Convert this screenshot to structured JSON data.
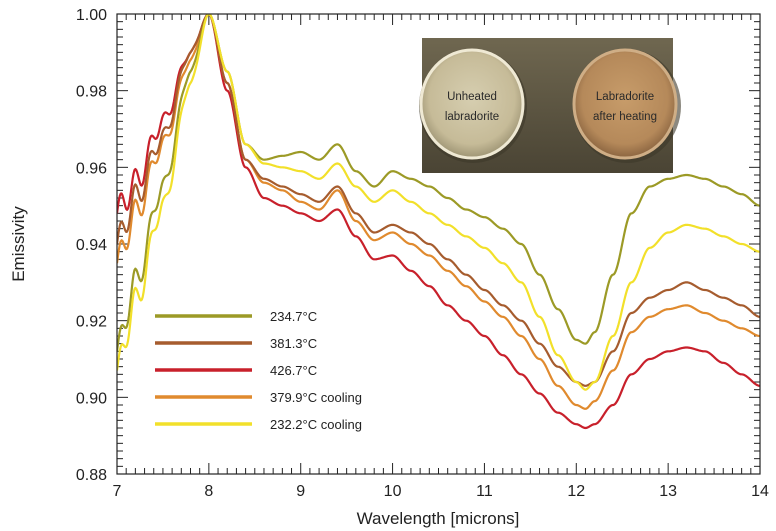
{
  "chart_data": {
    "type": "line",
    "title": "",
    "xlabel": "Wavelength [microns]",
    "ylabel": "Emissivity",
    "xlim": [
      7,
      14
    ],
    "ylim": [
      0.88,
      1.0
    ],
    "xticks": [
      "7",
      "8",
      "9",
      "10",
      "11",
      "12",
      "13",
      "14"
    ],
    "yticks": [
      "0.88",
      "0.90",
      "0.92",
      "0.94",
      "0.96",
      "0.98",
      "1.00"
    ],
    "grid": false,
    "legend_position": "bottom-left",
    "series": [
      {
        "name": "234.7°C",
        "color": "#9c9a26",
        "x": [
          7.0,
          7.2,
          7.5,
          7.8,
          8.0,
          8.2,
          8.4,
          8.6,
          8.8,
          9.0,
          9.2,
          9.4,
          9.6,
          9.8,
          10.0,
          10.2,
          10.4,
          10.6,
          10.8,
          11.0,
          11.2,
          11.4,
          11.6,
          11.8,
          12.0,
          12.1,
          12.2,
          12.4,
          12.6,
          12.8,
          13.0,
          13.2,
          13.4,
          13.6,
          13.8,
          14.0
        ],
        "y": [
          0.912,
          0.93,
          0.955,
          0.985,
          1.0,
          0.985,
          0.966,
          0.962,
          0.963,
          0.964,
          0.962,
          0.966,
          0.959,
          0.955,
          0.959,
          0.957,
          0.955,
          0.952,
          0.949,
          0.947,
          0.944,
          0.94,
          0.932,
          0.923,
          0.915,
          0.914,
          0.917,
          0.932,
          0.948,
          0.955,
          0.957,
          0.958,
          0.957,
          0.955,
          0.953,
          0.95
        ]
      },
      {
        "name": "381.3°C",
        "color": "#a65c2e",
        "x": [
          7.0,
          7.2,
          7.5,
          7.8,
          8.0,
          8.2,
          8.4,
          8.6,
          8.8,
          9.0,
          9.2,
          9.4,
          9.6,
          9.8,
          10.0,
          10.2,
          10.4,
          10.6,
          10.8,
          11.0,
          11.2,
          11.4,
          11.6,
          11.8,
          12.0,
          12.1,
          12.2,
          12.4,
          12.6,
          12.8,
          13.0,
          13.2,
          13.4,
          13.6,
          13.8,
          14.0
        ],
        "y": [
          0.94,
          0.952,
          0.968,
          0.99,
          1.0,
          0.982,
          0.962,
          0.957,
          0.955,
          0.953,
          0.951,
          0.955,
          0.948,
          0.943,
          0.945,
          0.943,
          0.94,
          0.936,
          0.932,
          0.928,
          0.924,
          0.92,
          0.914,
          0.908,
          0.904,
          0.903,
          0.904,
          0.912,
          0.922,
          0.926,
          0.928,
          0.93,
          0.928,
          0.926,
          0.924,
          0.921
        ]
      },
      {
        "name": "426.7°C",
        "color": "#c8202b",
        "x": [
          7.0,
          7.2,
          7.5,
          7.8,
          8.0,
          8.2,
          8.4,
          8.6,
          8.8,
          9.0,
          9.2,
          9.4,
          9.6,
          9.8,
          10.0,
          10.2,
          10.4,
          10.6,
          10.8,
          11.0,
          11.2,
          11.4,
          11.6,
          11.8,
          12.0,
          12.1,
          12.2,
          12.4,
          12.6,
          12.8,
          13.0,
          13.2,
          13.4,
          13.6,
          13.8,
          14.0
        ],
        "y": [
          0.948,
          0.956,
          0.972,
          0.99,
          1.0,
          0.98,
          0.96,
          0.952,
          0.95,
          0.948,
          0.946,
          0.949,
          0.942,
          0.936,
          0.937,
          0.933,
          0.929,
          0.924,
          0.92,
          0.916,
          0.911,
          0.906,
          0.901,
          0.896,
          0.893,
          0.892,
          0.893,
          0.898,
          0.906,
          0.91,
          0.912,
          0.913,
          0.912,
          0.909,
          0.906,
          0.903
        ]
      },
      {
        "name": "379.9°C cooling",
        "color": "#e08a2e",
        "x": [
          7.0,
          7.2,
          7.5,
          7.8,
          8.0,
          8.2,
          8.4,
          8.6,
          8.8,
          9.0,
          9.2,
          9.4,
          9.6,
          9.8,
          10.0,
          10.2,
          10.4,
          10.6,
          10.8,
          11.0,
          11.2,
          11.4,
          11.6,
          11.8,
          12.0,
          12.1,
          12.2,
          12.4,
          12.6,
          12.8,
          13.0,
          13.2,
          13.4,
          13.6,
          13.8,
          14.0
        ],
        "y": [
          0.935,
          0.948,
          0.966,
          0.988,
          1.0,
          0.982,
          0.962,
          0.956,
          0.954,
          0.951,
          0.949,
          0.954,
          0.946,
          0.941,
          0.943,
          0.94,
          0.937,
          0.933,
          0.929,
          0.925,
          0.921,
          0.916,
          0.91,
          0.903,
          0.898,
          0.897,
          0.899,
          0.907,
          0.917,
          0.921,
          0.923,
          0.924,
          0.922,
          0.92,
          0.918,
          0.916
        ]
      },
      {
        "name": "232.2°C cooling",
        "color": "#f2e02a",
        "x": [
          7.0,
          7.2,
          7.5,
          7.8,
          8.0,
          8.2,
          8.4,
          8.6,
          8.8,
          9.0,
          9.2,
          9.4,
          9.6,
          9.8,
          10.0,
          10.2,
          10.4,
          10.6,
          10.8,
          11.0,
          11.2,
          11.4,
          11.6,
          11.8,
          12.0,
          12.1,
          12.2,
          12.4,
          12.6,
          12.8,
          13.0,
          13.2,
          13.4,
          13.6,
          13.8,
          14.0
        ],
        "y": [
          0.907,
          0.925,
          0.95,
          0.982,
          1.0,
          0.985,
          0.966,
          0.961,
          0.96,
          0.959,
          0.957,
          0.961,
          0.955,
          0.951,
          0.954,
          0.951,
          0.948,
          0.945,
          0.942,
          0.939,
          0.935,
          0.93,
          0.921,
          0.911,
          0.904,
          0.902,
          0.904,
          0.916,
          0.93,
          0.939,
          0.943,
          0.945,
          0.944,
          0.942,
          0.94,
          0.938
        ]
      }
    ],
    "inset_photo": {
      "left_sample_label": [
        "Unheated",
        "labradorite"
      ],
      "right_sample_label": [
        "Labradorite",
        "after heating"
      ]
    }
  }
}
